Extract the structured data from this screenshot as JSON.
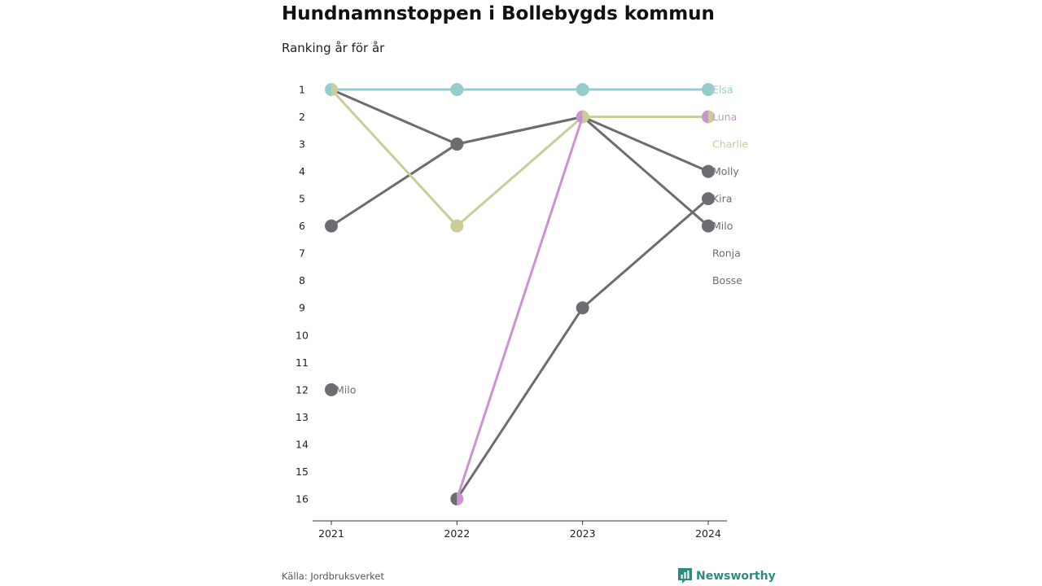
{
  "header": {
    "title": "Hundnamnstoppen i Bollebygds kommun",
    "subtitle": "Ranking år för år"
  },
  "footer": {
    "source": "Källa: Jordbruksverket",
    "brand": "Newsworthy",
    "brand_icon": "bar-chart-logo-icon"
  },
  "colors": {
    "elsa": "#96cccb",
    "luna": "#c994cf",
    "charlie": "#cccc99",
    "gray": "#6d6c72",
    "axis": "#333333",
    "brand": "#2c8c82"
  },
  "chart_data": {
    "type": "line",
    "x": [
      "2021",
      "2022",
      "2023",
      "2024"
    ],
    "y_ticks": [
      "1",
      "2",
      "3",
      "4",
      "5",
      "6",
      "7",
      "8",
      "9",
      "10",
      "11",
      "12",
      "13",
      "14",
      "15",
      "16"
    ],
    "ylim": [
      1,
      16
    ],
    "y_inverted": true,
    "grid": false,
    "series": [
      {
        "name": "Elsa",
        "color": "#96cccb",
        "ranks": [
          1,
          1,
          1,
          1
        ],
        "label_year": "2024"
      },
      {
        "name": "Luna",
        "color": "#c994cf",
        "ranks": [
          null,
          16,
          2,
          2
        ],
        "label_year": "2024"
      },
      {
        "name": "Charlie",
        "color": "#cccc99",
        "ranks": [
          1,
          6,
          2,
          2
        ],
        "label_year": "2024",
        "end_label_rank": 3
      },
      {
        "name": "Molly",
        "color": "#6d6c72",
        "ranks": [
          1,
          3,
          2,
          4
        ],
        "label_year": "2024"
      },
      {
        "name": "Kira",
        "color": "#6d6c72",
        "ranks": [
          null,
          16,
          9,
          5
        ],
        "label_year": "2024"
      },
      {
        "name": "Milo",
        "color": "#6d6c72",
        "ranks": [
          12,
          null,
          2,
          6
        ],
        "label_year": "2024"
      },
      {
        "name": "Ronja",
        "color": "#6d6c72",
        "ranks": [
          6,
          3,
          2,
          null
        ],
        "label_year": "2024",
        "end_label_rank": 7
      },
      {
        "name": "Bosse",
        "color": "#6d6c72",
        "ranks": [
          null,
          null,
          null,
          null
        ],
        "label_year": "2024",
        "end_label_rank": 8
      }
    ],
    "annotations": [
      {
        "text": "Milo",
        "year": "2021",
        "rank": 12,
        "color": "#6d6c72"
      }
    ]
  }
}
